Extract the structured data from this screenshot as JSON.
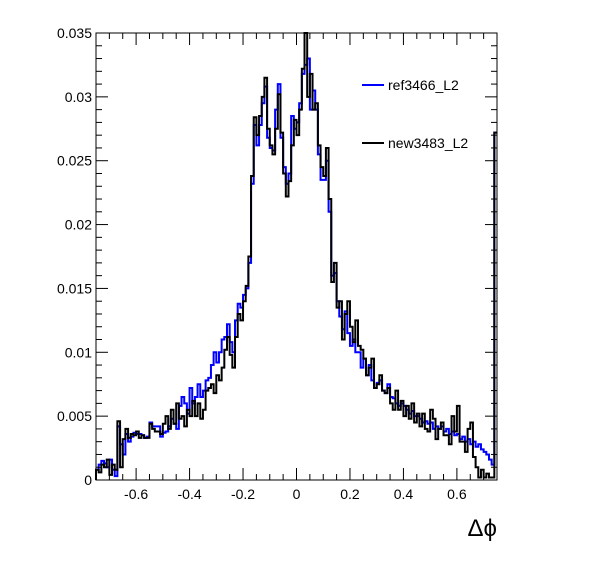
{
  "chart_data": {
    "type": "line",
    "style": "step-histogram",
    "title": "",
    "xlabel": "Δϕ",
    "ylabel": "",
    "xlim": [
      -0.75,
      0.75
    ],
    "ylim": [
      0,
      0.035
    ],
    "x_ticks": [
      -0.6,
      -0.4,
      -0.2,
      0,
      0.2,
      0.4,
      0.6
    ],
    "x_tick_labels": [
      "-0.6",
      "-0.4",
      "-0.2",
      "0",
      "0.2",
      "0.4",
      "0.6"
    ],
    "y_ticks": [
      0,
      0.005,
      0.01,
      0.015,
      0.02,
      0.025,
      0.03,
      0.035
    ],
    "y_tick_labels": [
      "0",
      "0.005",
      "0.01",
      "0.015",
      "0.02",
      "0.025",
      "0.03",
      "0.035"
    ],
    "grid": false,
    "legend_position": "top-right",
    "bins": 150,
    "series": [
      {
        "name": "ref3466_L2",
        "color": "#0000ff",
        "values": [
          0.0008,
          0.0012,
          0.0015,
          0.0013,
          0.001,
          0.0016,
          0.0008,
          0.0003,
          0.0042,
          0.0028,
          0.002,
          0.0036,
          0.003,
          0.0034,
          0.0037,
          0.0036,
          0.0036,
          0.0035,
          0.0033,
          0.0034,
          0.0045,
          0.0042,
          0.0042,
          0.0042,
          0.0034,
          0.0037,
          0.0038,
          0.0042,
          0.0048,
          0.0044,
          0.004,
          0.0058,
          0.0065,
          0.006,
          0.0052,
          0.0072,
          0.006,
          0.0065,
          0.0075,
          0.0065,
          0.007,
          0.0078,
          0.008,
          0.009,
          0.01,
          0.0092,
          0.01,
          0.011,
          0.0112,
          0.0122,
          0.0108,
          0.01,
          0.0125,
          0.0138,
          0.0135,
          0.0145,
          0.015,
          0.017,
          0.0232,
          0.0278,
          0.0262,
          0.0278,
          0.0295,
          0.0308,
          0.0268,
          0.026,
          0.0258,
          0.029,
          0.031,
          0.0268,
          0.0245,
          0.0232,
          0.024,
          0.0285,
          0.0275,
          0.028,
          0.0295,
          0.0318,
          0.0325,
          0.033,
          0.029,
          0.0305,
          0.029,
          0.0255,
          0.0235,
          0.0235,
          0.025,
          0.021,
          0.016,
          0.0162,
          0.014,
          0.0128,
          0.0118,
          0.0132,
          0.0115,
          0.0105,
          0.011,
          0.01,
          0.01,
          0.0088,
          0.0095,
          0.0082,
          0.009,
          0.0078,
          0.0072,
          0.0076,
          0.0078,
          0.007,
          0.0068,
          0.0075,
          0.0065,
          0.0064,
          0.006,
          0.0058,
          0.006,
          0.0058,
          0.0055,
          0.0052,
          0.0054,
          0.005,
          0.005,
          0.0048,
          0.0045,
          0.0046,
          0.0044,
          0.0045,
          0.004,
          0.0042,
          0.004,
          0.0042,
          0.0038,
          0.004,
          0.0036,
          0.0038,
          0.0035,
          0.0036,
          0.0032,
          0.0034,
          0.003,
          0.0032,
          0.0028,
          0.003,
          0.0026,
          0.0028,
          0.0024,
          0.0022,
          0.002,
          0.0016,
          0.0012,
          0.0272
        ]
      },
      {
        "name": "new3483_L2",
        "color": "#000000",
        "values": [
          0.0008,
          0.0006,
          0.0012,
          0.001,
          0.0016,
          0.0004,
          0.0012,
          0.0008,
          0.0046,
          0.001,
          0.0032,
          0.004,
          0.0033,
          0.0036,
          0.0035,
          0.0038,
          0.0033,
          0.0035,
          0.0033,
          0.0033,
          0.0044,
          0.004,
          0.0038,
          0.0038,
          0.0036,
          0.0044,
          0.005,
          0.004,
          0.0055,
          0.0044,
          0.006,
          0.0048,
          0.005,
          0.0042,
          0.0055,
          0.005,
          0.0062,
          0.005,
          0.006,
          0.0048,
          0.0055,
          0.007,
          0.0072,
          0.0075,
          0.0068,
          0.0082,
          0.0078,
          0.0088,
          0.0102,
          0.0112,
          0.0098,
          0.0088,
          0.0112,
          0.013,
          0.0125,
          0.014,
          0.0152,
          0.0175,
          0.0238,
          0.0284,
          0.027,
          0.0285,
          0.03,
          0.0315,
          0.0275,
          0.0262,
          0.0255,
          0.0275,
          0.0302,
          0.0272,
          0.024,
          0.0222,
          0.0234,
          0.0262,
          0.0282,
          0.027,
          0.029,
          0.0322,
          0.0352,
          0.03,
          0.0318,
          0.029,
          0.0295,
          0.0262,
          0.0245,
          0.0238,
          0.026,
          0.022,
          0.0155,
          0.017,
          0.0135,
          0.014,
          0.011,
          0.013,
          0.014,
          0.012,
          0.0108,
          0.0125,
          0.0105,
          0.0102,
          0.0095,
          0.0082,
          0.0088,
          0.0095,
          0.0072,
          0.0075,
          0.0082,
          0.007,
          0.0068,
          0.0072,
          0.006,
          0.0055,
          0.007,
          0.0055,
          0.0062,
          0.005,
          0.0058,
          0.0048,
          0.006,
          0.0045,
          0.0052,
          0.0042,
          0.0052,
          0.004,
          0.0038,
          0.0055,
          0.0048,
          0.0032,
          0.004,
          0.0045,
          0.0035,
          0.0035,
          0.0028,
          0.005,
          0.0038,
          0.0058,
          0.003,
          0.003,
          0.0022,
          0.004,
          0.0045,
          0.0018,
          0.001,
          0.0002,
          0.0008,
          0.0002,
          0.0005,
          0.0002,
          0.0002,
          0.0272
        ]
      }
    ]
  }
}
